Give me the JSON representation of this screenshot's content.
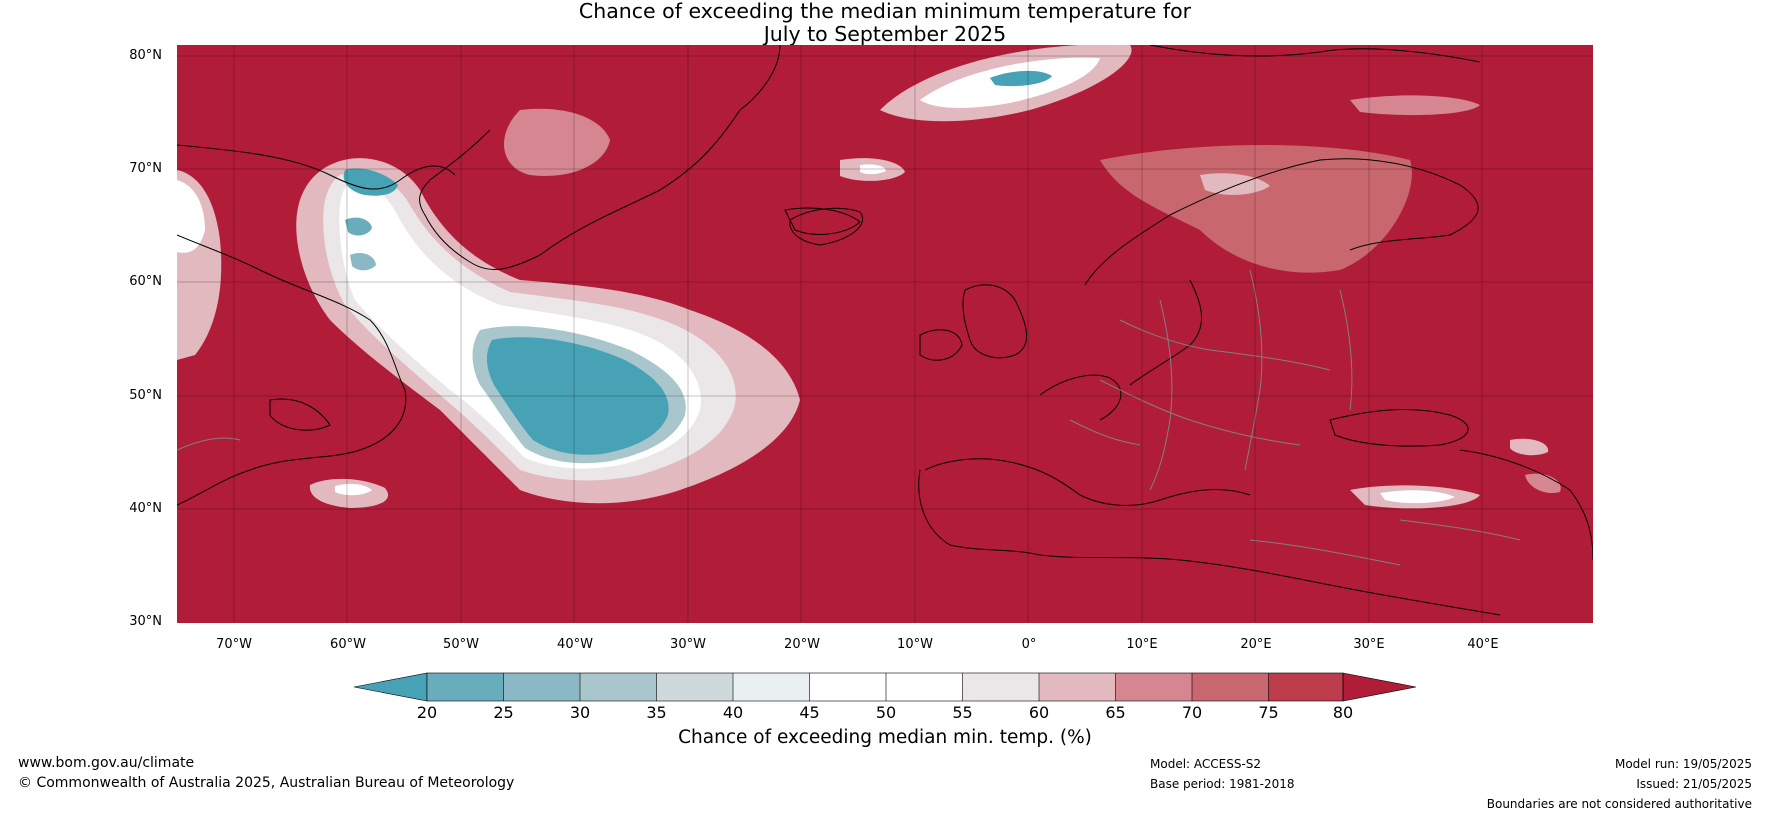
{
  "title": {
    "line1": "Chance of exceeding the median minimum temperature for",
    "line2": "July to September 2025"
  },
  "map": {
    "lat_labels": [
      "80°N",
      "70°N",
      "60°N",
      "50°N",
      "40°N",
      "30°N"
    ],
    "lon_labels": [
      "70°W",
      "60°W",
      "50°W",
      "40°W",
      "30°W",
      "20°W",
      "10°W",
      "0°",
      "10°E",
      "20°E",
      "30°E",
      "40°E"
    ],
    "colors": {
      "background_above": "#b11c38",
      "land_outline": "#000000",
      "borders": "#808080"
    }
  },
  "colorbar": {
    "ticks": [
      "20",
      "25",
      "30",
      "35",
      "40",
      "45",
      "50",
      "55",
      "60",
      "65",
      "70",
      "75",
      "80"
    ],
    "colors": [
      "#46a2b4",
      "#69adbc",
      "#8ab9c5",
      "#aac6cd",
      "#cfd9dc",
      "#e9f0f1",
      "#ffffff",
      "#ffffff",
      "#ebe7e8",
      "#e2b9be",
      "#d58690",
      "#c9676f",
      "#bd3c4b",
      "#b11c38"
    ],
    "label": "Chance of exceeding median min. temp. (%)"
  },
  "footer": {
    "website": "www.bom.gov.au/climate",
    "copyright": "© Commonwealth of Australia 2025, Australian Bureau of Meteorology",
    "model": "Model: ACCESS-S2",
    "base_period": "Base period: 1981-2018",
    "model_run": "Model run: 19/05/2025",
    "issued": "Issued: 21/05/2025",
    "disclaimer": "Boundaries are not considered authoritative"
  }
}
